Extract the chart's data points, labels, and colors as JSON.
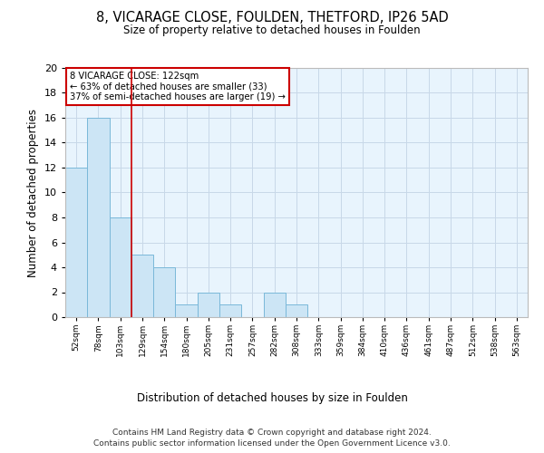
{
  "title_line1": "8, VICARAGE CLOSE, FOULDEN, THETFORD, IP26 5AD",
  "title_line2": "Size of property relative to detached houses in Foulden",
  "xlabel": "Distribution of detached houses by size in Foulden",
  "ylabel": "Number of detached properties",
  "bins": [
    "52sqm",
    "78sqm",
    "103sqm",
    "129sqm",
    "154sqm",
    "180sqm",
    "205sqm",
    "231sqm",
    "257sqm",
    "282sqm",
    "308sqm",
    "333sqm",
    "359sqm",
    "384sqm",
    "410sqm",
    "436sqm",
    "461sqm",
    "487sqm",
    "512sqm",
    "538sqm",
    "563sqm"
  ],
  "counts": [
    12,
    16,
    8,
    5,
    4,
    1,
    2,
    1,
    0,
    2,
    1,
    0,
    0,
    0,
    0,
    0,
    0,
    0,
    0,
    0,
    0
  ],
  "ylim": [
    0,
    20
  ],
  "yticks": [
    0,
    2,
    4,
    6,
    8,
    10,
    12,
    14,
    16,
    18,
    20
  ],
  "bar_color": "#cce5f5",
  "bar_edge_color": "#7ab8d9",
  "vline_color": "#cc0000",
  "vline_pos": 2.5,
  "annotation_text_line1": "8 VICARAGE CLOSE: 122sqm",
  "annotation_text_line2": "← 63% of detached houses are smaller (33)",
  "annotation_text_line3": "37% of semi-detached houses are larger (19) →",
  "annotation_box_color": "#ffffff",
  "annotation_border_color": "#cc0000",
  "bg_color": "#e8f4fd",
  "grid_color": "#c8d8e8",
  "footer_line1": "Contains HM Land Registry data © Crown copyright and database right 2024.",
  "footer_line2": "Contains public sector information licensed under the Open Government Licence v3.0."
}
